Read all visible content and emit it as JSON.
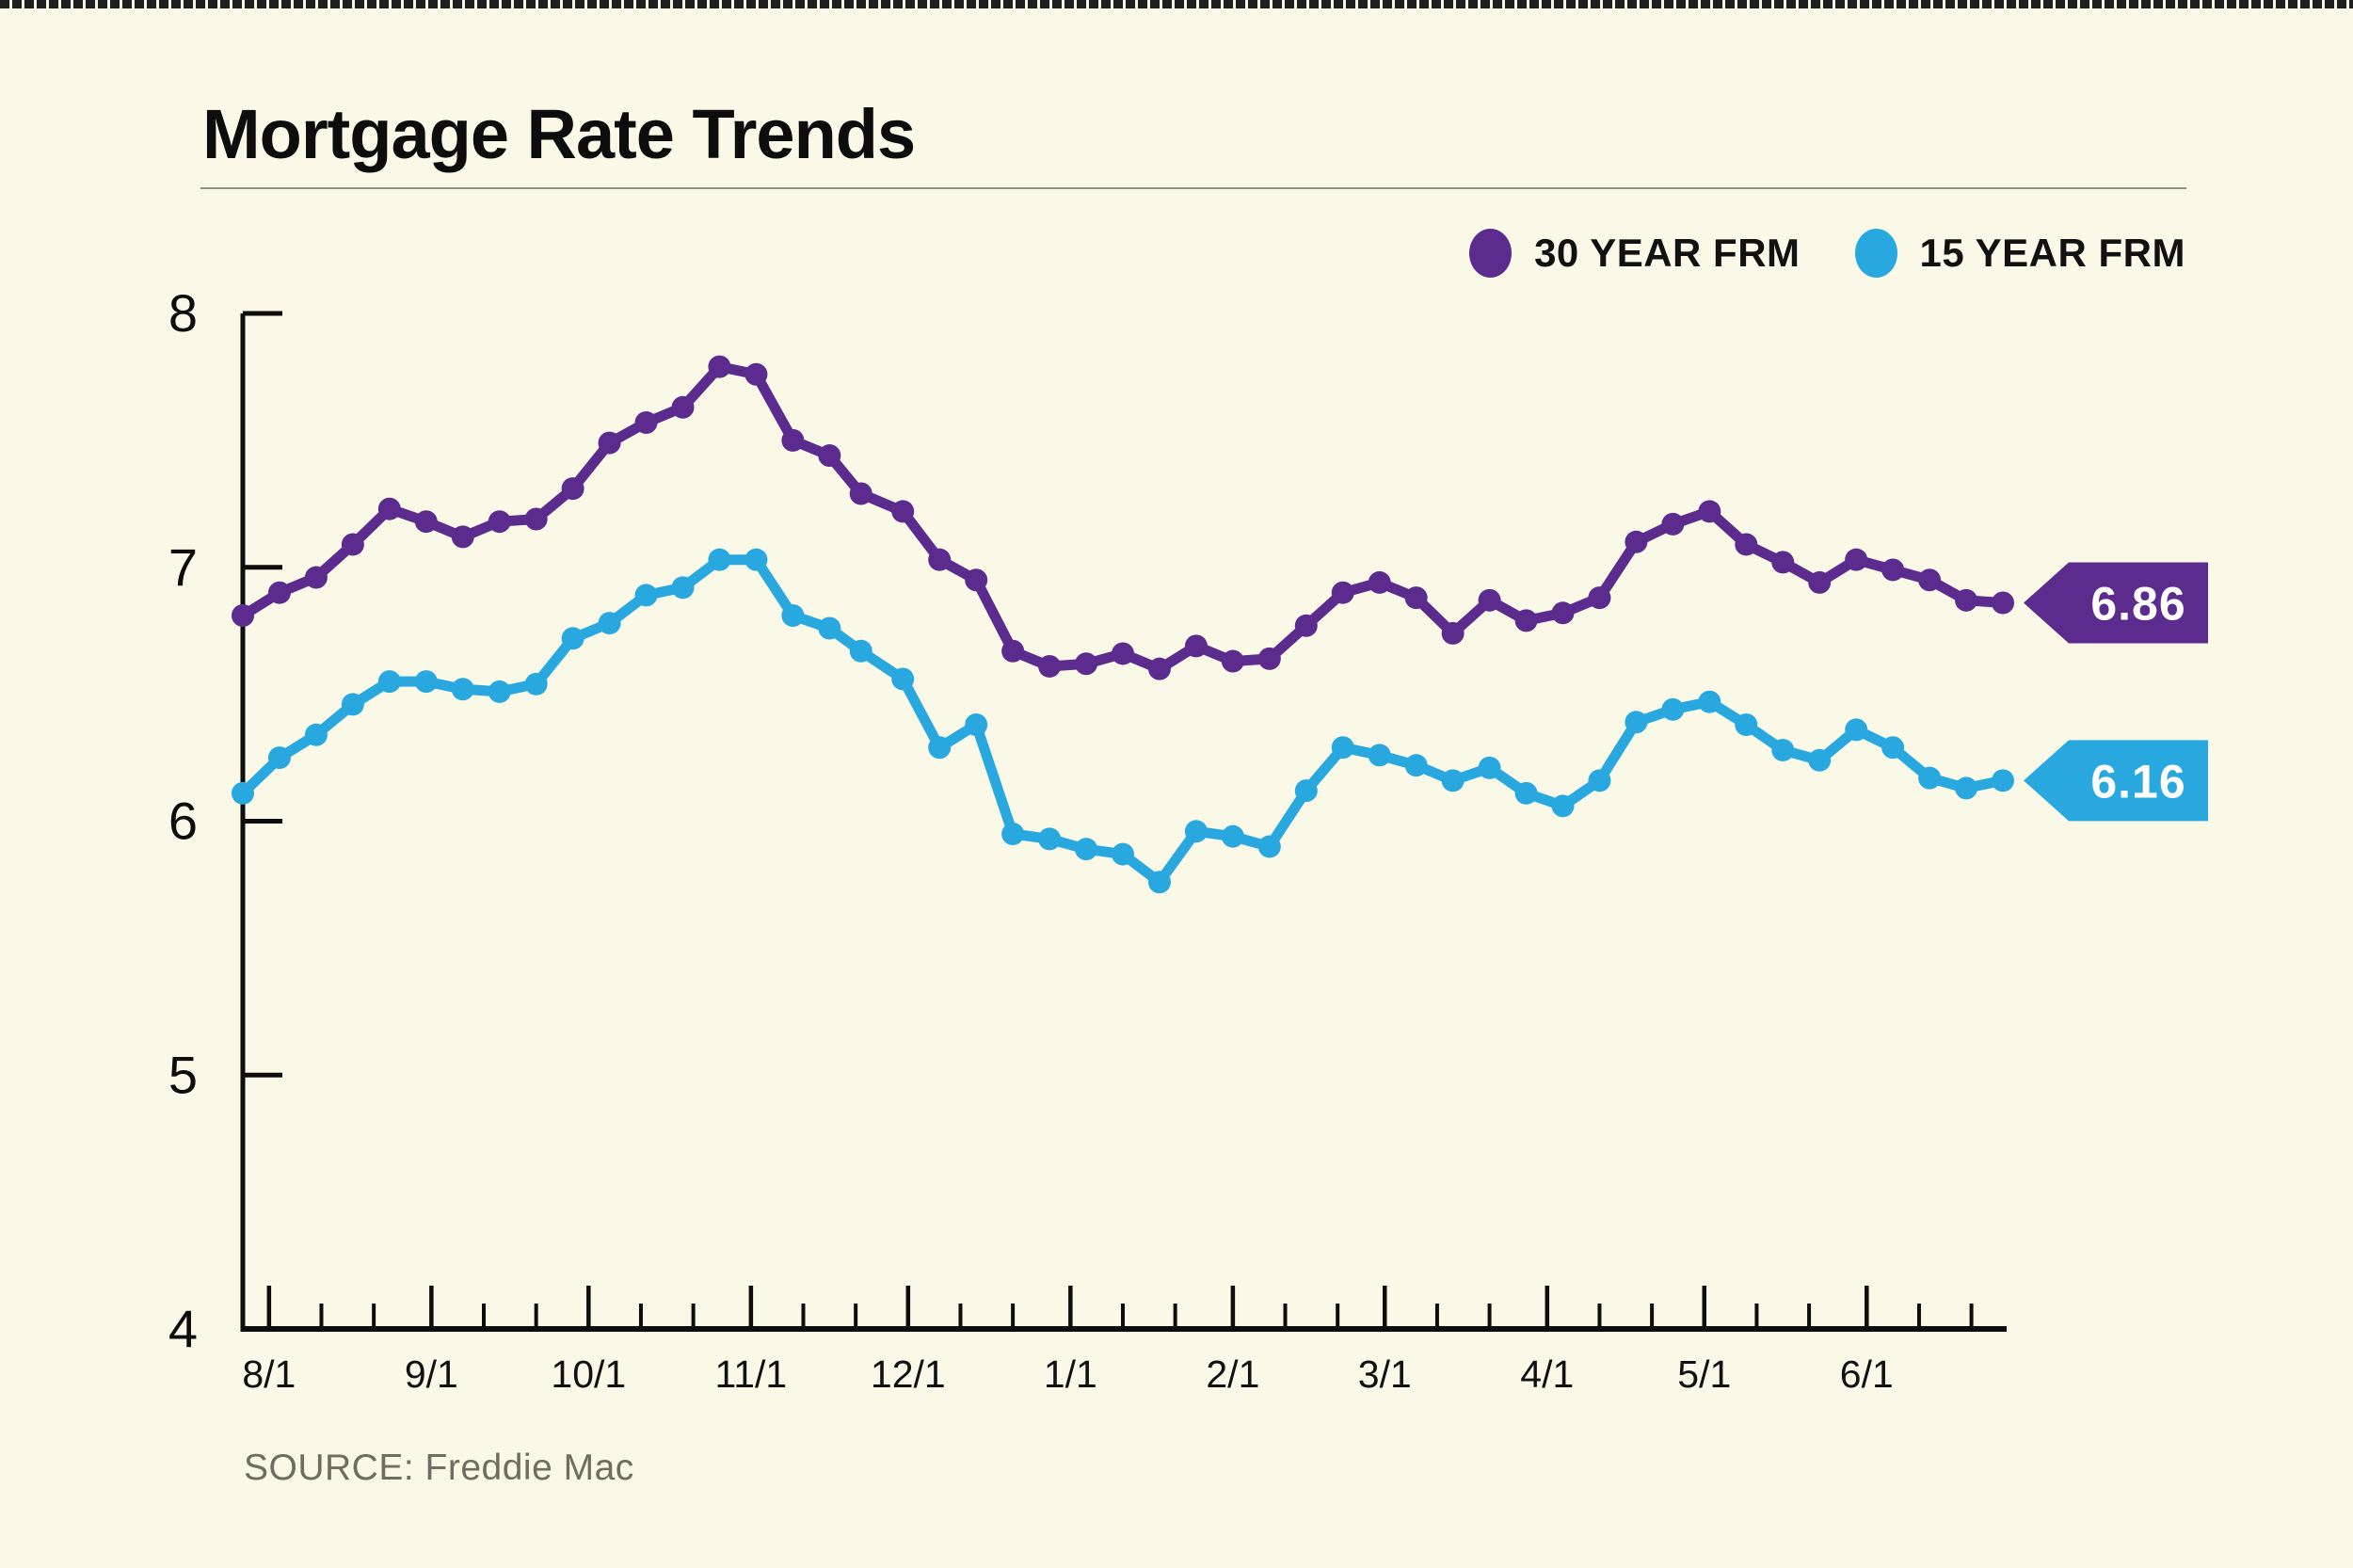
{
  "header": {
    "title": "Mortgage Rate Trends"
  },
  "legend": {
    "items": [
      {
        "label": "30 YEAR FRM",
        "color": "#5B2B8D"
      },
      {
        "label": "15 YEAR FRM",
        "color": "#29A8DF"
      }
    ]
  },
  "footer": {
    "source": "SOURCE: Freddie Mac"
  },
  "chart_data": {
    "type": "line",
    "title": "Mortgage Rate Trends",
    "source": "SOURCE: Freddie Mac",
    "ylim": [
      4,
      8
    ],
    "yticks": [
      8,
      7,
      6,
      5,
      4
    ],
    "grid": false,
    "legend_position": "top-right",
    "x_dates": [
      "2023-07-27",
      "2023-08-03",
      "2023-08-10",
      "2023-08-17",
      "2023-08-24",
      "2023-08-31",
      "2023-09-07",
      "2023-09-14",
      "2023-09-21",
      "2023-09-28",
      "2023-10-05",
      "2023-10-12",
      "2023-10-19",
      "2023-10-26",
      "2023-11-02",
      "2023-11-09",
      "2023-11-16",
      "2023-11-22",
      "2023-11-30",
      "2023-12-07",
      "2023-12-14",
      "2023-12-21",
      "2023-12-28",
      "2024-01-04",
      "2024-01-11",
      "2024-01-18",
      "2024-01-25",
      "2024-02-01",
      "2024-02-08",
      "2024-02-15",
      "2024-02-22",
      "2024-02-29",
      "2024-03-07",
      "2024-03-14",
      "2024-03-21",
      "2024-03-28",
      "2024-04-04",
      "2024-04-11",
      "2024-04-18",
      "2024-04-25",
      "2024-05-02",
      "2024-05-09",
      "2024-05-16",
      "2024-05-23",
      "2024-05-30",
      "2024-06-06",
      "2024-06-13",
      "2024-06-20",
      "2024-06-27"
    ],
    "x_major_ticks": [
      {
        "date": "2023-08-01",
        "label": "8/1"
      },
      {
        "date": "2023-09-01",
        "label": "9/1"
      },
      {
        "date": "2023-10-01",
        "label": "10/1"
      },
      {
        "date": "2023-11-01",
        "label": "11/1"
      },
      {
        "date": "2023-12-01",
        "label": "12/1"
      },
      {
        "date": "2024-01-01",
        "label": "1/1"
      },
      {
        "date": "2024-02-01",
        "label": "2/1"
      },
      {
        "date": "2024-03-01",
        "label": "3/1"
      },
      {
        "date": "2024-04-01",
        "label": "4/1"
      },
      {
        "date": "2024-05-01",
        "label": "5/1"
      },
      {
        "date": "2024-06-01",
        "label": "6/1"
      }
    ],
    "x_minor_tick_dates": [
      "2023-08-11",
      "2023-08-21",
      "2023-09-11",
      "2023-09-21",
      "2023-10-11",
      "2023-10-21",
      "2023-11-11",
      "2023-11-21",
      "2023-12-11",
      "2023-12-21",
      "2024-01-11",
      "2024-01-21",
      "2024-02-11",
      "2024-02-21",
      "2024-03-11",
      "2024-03-21",
      "2024-04-11",
      "2024-04-21",
      "2024-05-11",
      "2024-05-21",
      "2024-06-11",
      "2024-06-21"
    ],
    "series": [
      {
        "name": "30 YEAR FRM",
        "color": "#5B2B8D",
        "end_label": "6.86",
        "values": [
          6.81,
          6.9,
          6.96,
          7.09,
          7.23,
          7.18,
          7.12,
          7.18,
          7.19,
          7.31,
          7.49,
          7.57,
          7.63,
          7.79,
          7.76,
          7.5,
          7.44,
          7.29,
          7.22,
          7.03,
          6.95,
          6.67,
          6.61,
          6.62,
          6.66,
          6.6,
          6.69,
          6.63,
          6.64,
          6.77,
          6.9,
          6.94,
          6.88,
          6.74,
          6.87,
          6.79,
          6.82,
          6.88,
          7.1,
          7.17,
          7.22,
          7.09,
          7.02,
          6.94,
          7.03,
          6.99,
          6.95,
          6.87,
          6.86
        ]
      },
      {
        "name": "15 YEAR FRM",
        "color": "#29A8DF",
        "end_label": "6.16",
        "values": [
          6.11,
          6.25,
          6.34,
          6.46,
          6.55,
          6.55,
          6.52,
          6.51,
          6.54,
          6.72,
          6.78,
          6.89,
          6.92,
          7.03,
          7.03,
          6.81,
          6.76,
          6.67,
          6.56,
          6.29,
          6.38,
          5.95,
          5.93,
          5.89,
          5.87,
          5.76,
          5.96,
          5.94,
          5.9,
          6.12,
          6.29,
          6.26,
          6.22,
          6.16,
          6.21,
          6.11,
          6.06,
          6.16,
          6.39,
          6.44,
          6.47,
          6.38,
          6.28,
          6.24,
          6.36,
          6.29,
          6.17,
          6.13,
          6.16
        ]
      }
    ]
  }
}
